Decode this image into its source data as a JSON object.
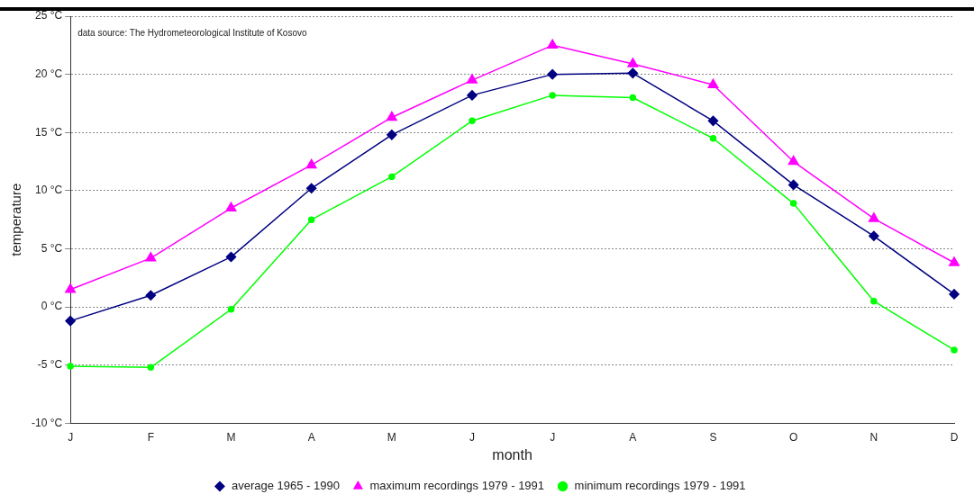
{
  "chart_data": {
    "type": "line",
    "xlabel": "month",
    "ylabel": "temperature",
    "categories": [
      "J",
      "F",
      "M",
      "A",
      "M",
      "J",
      "J",
      "A",
      "S",
      "O",
      "N",
      "D"
    ],
    "series": [
      {
        "name": "average 1965 - 1990",
        "color": "#000080",
        "marker": "diamond",
        "values": [
          -1.2,
          1.0,
          4.3,
          10.2,
          14.8,
          18.2,
          20.0,
          20.1,
          16.0,
          10.5,
          6.1,
          1.1
        ]
      },
      {
        "name": "maximum recordings 1979 - 1991",
        "color": "#ff00ff",
        "marker": "triangle",
        "values": [
          1.5,
          4.2,
          8.5,
          12.2,
          16.3,
          19.5,
          22.5,
          20.9,
          19.1,
          12.5,
          7.6,
          3.8
        ]
      },
      {
        "name": "minimum recordings 1979 - 1991",
        "color": "#00ff00",
        "marker": "circle",
        "values": [
          -5.1,
          -5.2,
          -0.2,
          7.5,
          11.2,
          16.0,
          18.2,
          18.0,
          14.5,
          8.9,
          0.5,
          -3.7
        ]
      }
    ],
    "ylim": [
      -10,
      25
    ],
    "yticks": [
      {
        "value": -10,
        "label": "-10 °C"
      },
      {
        "value": -5,
        "label": "-5 °C"
      },
      {
        "value": 0,
        "label": "0 °C"
      },
      {
        "value": 5,
        "label": "5 °C"
      },
      {
        "value": 10,
        "label": "10 °C"
      },
      {
        "value": 15,
        "label": "15 °C"
      },
      {
        "value": 20,
        "label": "20 °C"
      },
      {
        "value": 25,
        "label": "25 °C"
      }
    ],
    "grid": "y",
    "legend": "bottom",
    "line_style": "solid",
    "annotations": [
      "data source: The Hydrometeorological Institute of Kosovo"
    ]
  }
}
